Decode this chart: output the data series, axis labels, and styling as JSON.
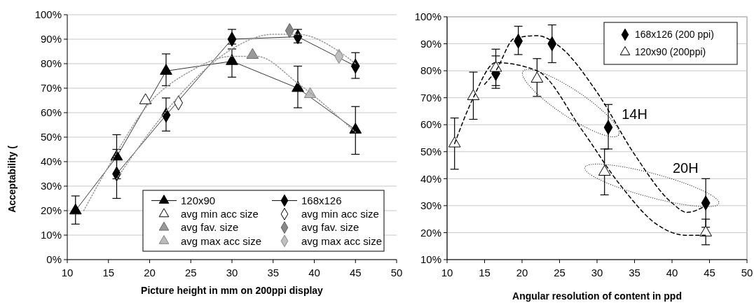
{
  "chart_data": [
    {
      "type": "line",
      "xlabel": "Picture height in mm on 200ppi display",
      "ylabel": "Acceptability (",
      "xlim": [
        10,
        50
      ],
      "xticks": [
        10,
        15,
        20,
        25,
        30,
        35,
        40,
        45,
        50
      ],
      "ylim": [
        0,
        100
      ],
      "yticks": [
        {
          "value": 0,
          "label": "0%"
        },
        {
          "value": 10,
          "label": "10%"
        },
        {
          "value": 20,
          "label": "20%"
        },
        {
          "value": 30,
          "label": "30%"
        },
        {
          "value": 40,
          "label": "40%"
        },
        {
          "value": 50,
          "label": "50%"
        },
        {
          "value": 60,
          "label": "60%"
        },
        {
          "value": 70,
          "label": "70%"
        },
        {
          "value": 80,
          "label": "80%"
        },
        {
          "value": 90,
          "label": "90%"
        },
        {
          "value": 100,
          "label": "100%"
        }
      ],
      "grid": "y",
      "legend": "bottom right",
      "series": [
        {
          "name": "120x90",
          "color": "#000000",
          "marker": "triangle",
          "x": [
            11,
            16,
            22,
            30,
            38,
            45
          ],
          "values": [
            20,
            42,
            77,
            81,
            70,
            53
          ],
          "errors": [
            [
              14.5,
              26
            ],
            [
              33,
              51
            ],
            [
              71,
              84
            ],
            [
              74.5,
              86
            ],
            [
              62,
              79
            ],
            [
              43,
              62.5
            ]
          ]
        },
        {
          "name": "168x126",
          "color": "#000000",
          "marker": "diamond",
          "x": [
            16,
            22,
            30,
            38,
            45
          ],
          "values": [
            35,
            59,
            90,
            91,
            79
          ],
          "errors": [
            [
              25,
              45
            ],
            [
              52.5,
              66
            ],
            [
              88,
              94
            ],
            [
              88.5,
              94
            ],
            [
              74,
              84.5
            ]
          ]
        },
        {
          "name": "avg min acc size",
          "type": "scatter",
          "color": "#ffffff",
          "marker": "triangle",
          "x": [
            19.5
          ],
          "values": [
            65
          ]
        },
        {
          "name": "avg min acc size",
          "type": "scatter",
          "color": "#ffffff",
          "marker": "diamond",
          "x": [
            23.5
          ],
          "values": [
            64
          ]
        },
        {
          "name": "avg fav. size",
          "type": "scatter",
          "color": "#999999",
          "marker": "triangle",
          "x": [
            32.5
          ],
          "values": [
            83.5
          ]
        },
        {
          "name": "avg fav. size",
          "type": "scatter",
          "color": "#888888",
          "marker": "diamond",
          "x": [
            37
          ],
          "values": [
            93.5
          ]
        },
        {
          "name": "avg max acc size",
          "type": "scatter",
          "color": "#bbbbbb",
          "marker": "triangle",
          "x": [
            39.5
          ],
          "values": [
            67.5
          ]
        },
        {
          "name": "avg max acc size",
          "type": "scatter",
          "color": "#c0c0c0",
          "marker": "diamond",
          "x": [
            43
          ],
          "values": [
            83
          ]
        },
        {
          "type": "line",
          "color": "#999999",
          "marker": "none",
          "line_style": "dotted",
          "x": [
            12,
            15,
            20,
            25,
            30,
            33,
            38,
            45
          ],
          "values": [
            20,
            38,
            64,
            77,
            83,
            83,
            72,
            52
          ]
        },
        {
          "type": "line",
          "color": "#999999",
          "marker": "none",
          "line_style": "dotted",
          "x": [
            16,
            20,
            25,
            30,
            35,
            38,
            43,
            45
          ],
          "values": [
            33,
            52,
            72,
            86,
            92,
            92,
            85,
            80
          ]
        }
      ]
    },
    {
      "type": "scatter",
      "xlabel": "Angular resolution of content in ppd",
      "xlim": [
        10,
        50
      ],
      "xticks": [
        10,
        15,
        20,
        25,
        30,
        35,
        40,
        45,
        50
      ],
      "ylim": [
        10,
        100
      ],
      "yticks": [
        {
          "value": 10,
          "label": "10%"
        },
        {
          "value": 20,
          "label": "20%"
        },
        {
          "value": 30,
          "label": "30%"
        },
        {
          "value": 40,
          "label": "40%"
        },
        {
          "value": 50,
          "label": "50%"
        },
        {
          "value": 60,
          "label": "60%"
        },
        {
          "value": 70,
          "label": "70%"
        },
        {
          "value": 80,
          "label": "80%"
        },
        {
          "value": 90,
          "label": "90%"
        },
        {
          "value": 100,
          "label": "100%"
        }
      ],
      "grid": "y",
      "legend": "top right",
      "annotations": [
        "14H",
        "20H"
      ],
      "series": [
        {
          "name": "168x126 (200 ppi)",
          "color": "#000000",
          "marker": "diamond",
          "x": [
            16.5,
            19.5,
            24,
            31.5,
            44.5
          ],
          "values": [
            79,
            91,
            90,
            59,
            31
          ],
          "errors": [
            [
              73.5,
              85.5
            ],
            [
              86,
              96.5
            ],
            [
              83,
              97
            ],
            [
              51,
              67.5
            ],
            [
              22,
              40
            ]
          ]
        },
        {
          "name": "120x90 (200ppi)",
          "color": "#ffffff",
          "marker": "triangle",
          "x": [
            11,
            13.5,
            16.5,
            22,
            31,
            44.5
          ],
          "values": [
            53,
            70.5,
            81,
            77,
            42.5,
            20
          ],
          "errors": [
            [
              43.5,
              62.5
            ],
            [
              62,
              79.5
            ],
            [
              74.5,
              88
            ],
            [
              70.5,
              84.5
            ],
            [
              34,
              51
            ],
            [
              15.5,
              25
            ]
          ]
        },
        {
          "type": "line",
          "color": "#000000",
          "marker": "none",
          "line_style": "dashed",
          "x": [
            15,
            16.5,
            19,
            22,
            25,
            30,
            35,
            40,
            42,
            44.5
          ],
          "values": [
            75,
            80,
            92,
            93,
            89,
            72,
            49,
            31,
            27.5,
            30
          ]
        },
        {
          "type": "line",
          "color": "#000000",
          "marker": "none",
          "line_style": "dashed",
          "x": [
            11,
            13.5,
            16.5,
            22,
            28,
            33,
            38,
            42,
            44.5
          ],
          "values": [
            53,
            70,
            83,
            80,
            58,
            38,
            23,
            19,
            19
          ]
        }
      ]
    }
  ]
}
